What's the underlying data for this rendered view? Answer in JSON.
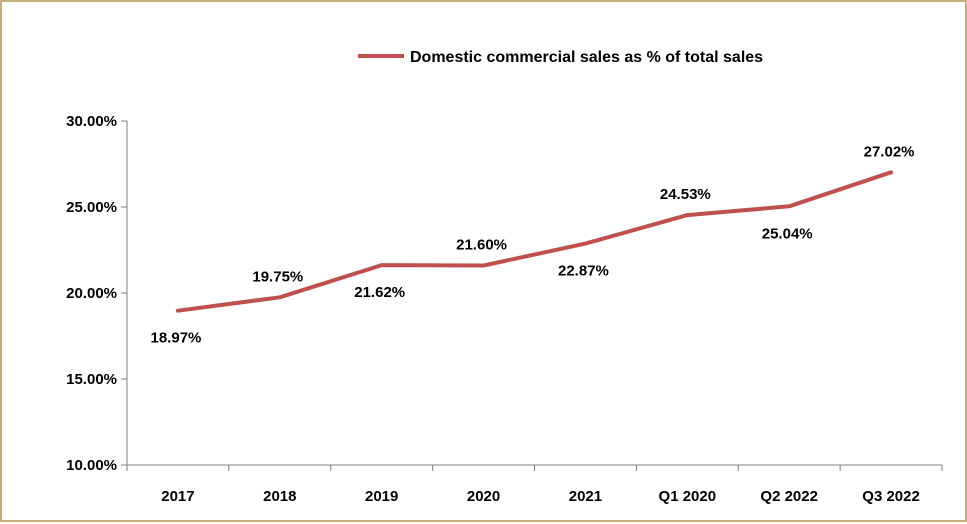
{
  "chart_data": {
    "type": "line",
    "title": "",
    "xlabel": "",
    "ylabel": "",
    "categories": [
      "2017",
      "2018",
      "2019",
      "2020",
      "2021",
      "Q1 2020",
      "Q2 2022",
      "Q3 2022"
    ],
    "series": [
      {
        "name": "Domestic commercial sales as % of total sales",
        "values": [
          18.97,
          19.75,
          21.62,
          21.6,
          22.87,
          24.53,
          25.04,
          27.02
        ],
        "labels": [
          "18.97%",
          "19.75%",
          "21.62%",
          "21.60%",
          "22.87%",
          "24.53%",
          "25.04%",
          "27.02%"
        ],
        "label_positions": [
          "below",
          "above",
          "below",
          "above",
          "below",
          "above",
          "below",
          "above"
        ],
        "color": "#c0504d"
      }
    ],
    "ylim": [
      10,
      30
    ],
    "yticks": [
      10,
      15,
      20,
      25,
      30
    ],
    "ytick_labels": [
      "10.00%",
      "15.00%",
      "20.00%",
      "25.00%",
      "30.00%"
    ],
    "grid": false,
    "legend": "top-center"
  },
  "colors": {
    "frame": "#c9ad7a",
    "axis": "#808080",
    "line": "#c0504d"
  }
}
